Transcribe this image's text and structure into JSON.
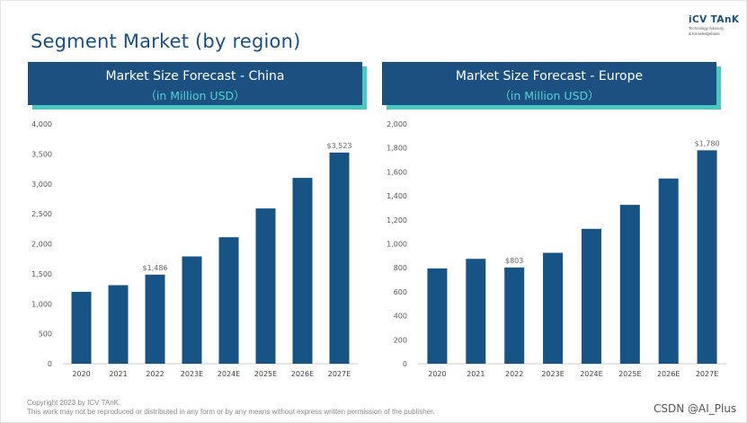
{
  "page": {
    "title": "Segment Market (by region)",
    "brand": {
      "name": "iCV TAnK",
      "tagline1": "Technology Advisory",
      "tagline2": "& Knowledgebase"
    },
    "copyright1": "Copyright  2023 by ICV TAnK.",
    "copyright2": "This work may not be reproduced or distributed in any form or by any means without express written permission of the publisher.",
    "watermark": "CSDN @AI_Plus"
  },
  "colors": {
    "bar": "#185385",
    "header": "#1b5080",
    "accent": "#4cc6c1"
  },
  "panels": [
    {
      "header": "Market Size Forecast - China",
      "subheader": "（in Million USD）"
    },
    {
      "header": "Market Size Forecast - Europe",
      "subheader": "（in Million USD）"
    }
  ],
  "chart_data": [
    {
      "type": "bar",
      "title": "Market Size Forecast - China",
      "ylabel": "in Million USD",
      "categories": [
        "2020",
        "2021",
        "2022",
        "2023E",
        "2024E",
        "2025E",
        "2026E",
        "2027E"
      ],
      "values": [
        1200,
        1310,
        1486,
        1790,
        2110,
        2590,
        3100,
        3523
      ],
      "ylim": [
        0,
        4000
      ],
      "yticks": [
        0,
        500,
        1000,
        1500,
        2000,
        2500,
        3000,
        3500,
        4000
      ],
      "ytick_labels": [
        "0",
        "500",
        "1,000",
        "1,500",
        "2,000",
        "2,500",
        "3,000",
        "3,500",
        "4,000"
      ],
      "data_labels": [
        null,
        null,
        "$1,486",
        null,
        null,
        null,
        null,
        "$3,523"
      ]
    },
    {
      "type": "bar",
      "title": "Market Size Forecast - Europe",
      "ylabel": "in Million USD",
      "categories": [
        "2020",
        "2021",
        "2022",
        "2023E",
        "2024E",
        "2025E",
        "2026E",
        "2027E"
      ],
      "values": [
        795,
        875,
        803,
        925,
        1125,
        1325,
        1545,
        1780
      ],
      "ylim": [
        0,
        2000
      ],
      "yticks": [
        0,
        200,
        400,
        600,
        800,
        1000,
        1200,
        1400,
        1600,
        1800,
        2000
      ],
      "ytick_labels": [
        "0",
        "200",
        "400",
        "600",
        "800",
        "1,000",
        "1,200",
        "1,400",
        "1,600",
        "1,800",
        "2,000"
      ],
      "data_labels": [
        null,
        null,
        "$803",
        null,
        null,
        null,
        null,
        "$1,780"
      ]
    }
  ]
}
